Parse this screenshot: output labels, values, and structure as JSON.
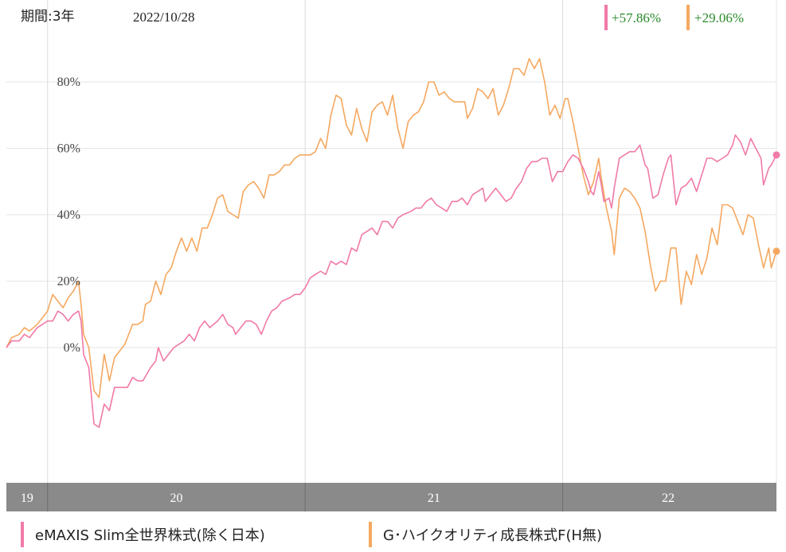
{
  "header": {
    "period_label": "期間:3年",
    "date": "2022/10/28"
  },
  "returns": [
    {
      "value": "+57.86%",
      "color": "#f07aa8"
    },
    {
      "value": "+29.06%",
      "color": "#f5a860"
    }
  ],
  "colors": {
    "series1": "#f07aa8",
    "series2": "#f5a860",
    "positive_text": "#2a8a2a",
    "grid": "#e6e6e6",
    "year_bar": "#8a8a8a"
  },
  "chart_data": {
    "type": "line",
    "ylim": [
      -45,
      100
    ],
    "yticks": [
      0,
      20,
      40,
      60,
      80
    ],
    "ytick_labels": [
      "0%",
      "20%",
      "40%",
      "60%",
      "80%"
    ],
    "xlim": [
      2019.84,
      2022.83
    ],
    "year_ticks": [
      2020.0,
      2021.0,
      2022.0
    ],
    "year_labels": [
      {
        "label": "19",
        "x": 2019.92
      },
      {
        "label": "20",
        "x": 2020.5
      },
      {
        "label": "21",
        "x": 2021.5
      },
      {
        "label": "22",
        "x": 2022.41
      }
    ],
    "series": [
      {
        "name": "eMAXIS Slim全世界株式(除く日本)",
        "points": [
          [
            2019.84,
            0
          ],
          [
            2019.86,
            2
          ],
          [
            2019.89,
            2
          ],
          [
            2019.91,
            4
          ],
          [
            2019.93,
            3
          ],
          [
            2019.96,
            6
          ],
          [
            2019.98,
            7
          ],
          [
            2020.0,
            8
          ],
          [
            2020.02,
            8
          ],
          [
            2020.04,
            11
          ],
          [
            2020.06,
            10
          ],
          [
            2020.08,
            8
          ],
          [
            2020.1,
            10
          ],
          [
            2020.12,
            11
          ],
          [
            2020.13,
            8
          ],
          [
            2020.14,
            -2
          ],
          [
            2020.16,
            -6
          ],
          [
            2020.18,
            -23
          ],
          [
            2020.2,
            -24
          ],
          [
            2020.22,
            -17
          ],
          [
            2020.24,
            -19
          ],
          [
            2020.26,
            -12
          ],
          [
            2020.28,
            -12
          ],
          [
            2020.31,
            -12
          ],
          [
            2020.33,
            -9
          ],
          [
            2020.35,
            -10
          ],
          [
            2020.37,
            -10
          ],
          [
            2020.4,
            -6
          ],
          [
            2020.42,
            -4
          ],
          [
            2020.43,
            0
          ],
          [
            2020.45,
            -4
          ],
          [
            2020.47,
            -2
          ],
          [
            2020.49,
            0
          ],
          [
            2020.51,
            1
          ],
          [
            2020.53,
            2
          ],
          [
            2020.55,
            4
          ],
          [
            2020.57,
            2
          ],
          [
            2020.59,
            6
          ],
          [
            2020.61,
            8
          ],
          [
            2020.63,
            6
          ],
          [
            2020.66,
            8
          ],
          [
            2020.68,
            10
          ],
          [
            2020.7,
            7
          ],
          [
            2020.72,
            6
          ],
          [
            2020.73,
            4
          ],
          [
            2020.75,
            6
          ],
          [
            2020.77,
            8
          ],
          [
            2020.79,
            8
          ],
          [
            2020.81,
            7
          ],
          [
            2020.83,
            4
          ],
          [
            2020.85,
            8
          ],
          [
            2020.87,
            11
          ],
          [
            2020.89,
            12
          ],
          [
            2020.91,
            14
          ],
          [
            2020.94,
            15
          ],
          [
            2020.96,
            16
          ],
          [
            2020.98,
            16
          ],
          [
            2021.0,
            18
          ],
          [
            2021.02,
            21
          ],
          [
            2021.04,
            22
          ],
          [
            2021.06,
            23
          ],
          [
            2021.08,
            22
          ],
          [
            2021.1,
            26
          ],
          [
            2021.12,
            25
          ],
          [
            2021.14,
            26
          ],
          [
            2021.16,
            25
          ],
          [
            2021.18,
            30
          ],
          [
            2021.2,
            29
          ],
          [
            2021.22,
            34
          ],
          [
            2021.24,
            35
          ],
          [
            2021.26,
            36
          ],
          [
            2021.28,
            34
          ],
          [
            2021.3,
            38
          ],
          [
            2021.32,
            38
          ],
          [
            2021.34,
            36
          ],
          [
            2021.36,
            39
          ],
          [
            2021.38,
            40
          ],
          [
            2021.41,
            41
          ],
          [
            2021.43,
            42
          ],
          [
            2021.45,
            42
          ],
          [
            2021.47,
            44
          ],
          [
            2021.49,
            45
          ],
          [
            2021.51,
            43
          ],
          [
            2021.53,
            42
          ],
          [
            2021.55,
            41
          ],
          [
            2021.57,
            44
          ],
          [
            2021.59,
            44
          ],
          [
            2021.61,
            45
          ],
          [
            2021.63,
            43
          ],
          [
            2021.65,
            46
          ],
          [
            2021.67,
            47
          ],
          [
            2021.69,
            48
          ],
          [
            2021.7,
            44
          ],
          [
            2021.72,
            46
          ],
          [
            2021.74,
            48
          ],
          [
            2021.76,
            46
          ],
          [
            2021.78,
            44
          ],
          [
            2021.8,
            45
          ],
          [
            2021.82,
            48
          ],
          [
            2021.84,
            50
          ],
          [
            2021.86,
            54
          ],
          [
            2021.88,
            56
          ],
          [
            2021.9,
            56
          ],
          [
            2021.92,
            57
          ],
          [
            2021.94,
            57
          ],
          [
            2021.96,
            50
          ],
          [
            2021.98,
            53
          ],
          [
            2022.0,
            53
          ],
          [
            2022.02,
            56
          ],
          [
            2022.04,
            58
          ],
          [
            2022.06,
            57
          ],
          [
            2022.08,
            54
          ],
          [
            2022.1,
            50
          ],
          [
            2022.11,
            47
          ],
          [
            2022.12,
            46
          ],
          [
            2022.14,
            53
          ],
          [
            2022.15,
            49
          ],
          [
            2022.16,
            44
          ],
          [
            2022.18,
            45
          ],
          [
            2022.19,
            42
          ],
          [
            2022.2,
            48
          ],
          [
            2022.22,
            57
          ],
          [
            2022.24,
            58
          ],
          [
            2022.26,
            59
          ],
          [
            2022.28,
            59
          ],
          [
            2022.3,
            61
          ],
          [
            2022.32,
            55
          ],
          [
            2022.33,
            54
          ],
          [
            2022.35,
            45
          ],
          [
            2022.37,
            46
          ],
          [
            2022.39,
            52
          ],
          [
            2022.41,
            57
          ],
          [
            2022.42,
            58
          ],
          [
            2022.44,
            43
          ],
          [
            2022.46,
            48
          ],
          [
            2022.48,
            49
          ],
          [
            2022.5,
            51
          ],
          [
            2022.52,
            47
          ],
          [
            2022.54,
            52
          ],
          [
            2022.56,
            57
          ],
          [
            2022.58,
            57
          ],
          [
            2022.6,
            56
          ],
          [
            2022.62,
            57
          ],
          [
            2022.64,
            58
          ],
          [
            2022.66,
            61
          ],
          [
            2022.67,
            64
          ],
          [
            2022.69,
            62
          ],
          [
            2022.71,
            58
          ],
          [
            2022.73,
            63
          ],
          [
            2022.75,
            60
          ],
          [
            2022.77,
            57
          ],
          [
            2022.78,
            49
          ],
          [
            2022.8,
            54
          ],
          [
            2022.81,
            55
          ],
          [
            2022.83,
            58
          ]
        ]
      },
      {
        "name": "G･ハイクオリティ成長株式F(H無)",
        "points": [
          [
            2019.84,
            0
          ],
          [
            2019.86,
            3
          ],
          [
            2019.89,
            4
          ],
          [
            2019.91,
            6
          ],
          [
            2019.93,
            5
          ],
          [
            2019.96,
            7
          ],
          [
            2019.98,
            9
          ],
          [
            2020.0,
            11
          ],
          [
            2020.02,
            16
          ],
          [
            2020.04,
            14
          ],
          [
            2020.06,
            12
          ],
          [
            2020.08,
            15
          ],
          [
            2020.1,
            17
          ],
          [
            2020.12,
            20
          ],
          [
            2020.13,
            13
          ],
          [
            2020.14,
            4
          ],
          [
            2020.16,
            0
          ],
          [
            2020.18,
            -13
          ],
          [
            2020.2,
            -15
          ],
          [
            2020.22,
            -2
          ],
          [
            2020.24,
            -10
          ],
          [
            2020.26,
            -3
          ],
          [
            2020.28,
            -1
          ],
          [
            2020.3,
            1
          ],
          [
            2020.31,
            3
          ],
          [
            2020.33,
            7
          ],
          [
            2020.35,
            7
          ],
          [
            2020.37,
            8
          ],
          [
            2020.38,
            13
          ],
          [
            2020.4,
            14
          ],
          [
            2020.42,
            20
          ],
          [
            2020.44,
            16
          ],
          [
            2020.46,
            22
          ],
          [
            2020.48,
            24
          ],
          [
            2020.5,
            29
          ],
          [
            2020.52,
            33
          ],
          [
            2020.54,
            29
          ],
          [
            2020.56,
            33
          ],
          [
            2020.58,
            29
          ],
          [
            2020.6,
            36
          ],
          [
            2020.62,
            36
          ],
          [
            2020.64,
            40
          ],
          [
            2020.66,
            45
          ],
          [
            2020.68,
            46
          ],
          [
            2020.7,
            41
          ],
          [
            2020.72,
            40
          ],
          [
            2020.74,
            39
          ],
          [
            2020.76,
            47
          ],
          [
            2020.78,
            49
          ],
          [
            2020.8,
            50
          ],
          [
            2020.82,
            48
          ],
          [
            2020.84,
            45
          ],
          [
            2020.86,
            52
          ],
          [
            2020.88,
            52
          ],
          [
            2020.9,
            53
          ],
          [
            2020.92,
            55
          ],
          [
            2020.94,
            55
          ],
          [
            2020.96,
            57
          ],
          [
            2020.98,
            58
          ],
          [
            2021.0,
            58
          ],
          [
            2021.02,
            58
          ],
          [
            2021.04,
            59
          ],
          [
            2021.06,
            63
          ],
          [
            2021.08,
            60
          ],
          [
            2021.1,
            70
          ],
          [
            2021.12,
            76
          ],
          [
            2021.14,
            75
          ],
          [
            2021.16,
            67
          ],
          [
            2021.18,
            64
          ],
          [
            2021.2,
            72
          ],
          [
            2021.22,
            66
          ],
          [
            2021.24,
            62
          ],
          [
            2021.26,
            71
          ],
          [
            2021.28,
            73
          ],
          [
            2021.3,
            74
          ],
          [
            2021.32,
            70
          ],
          [
            2021.34,
            76
          ],
          [
            2021.36,
            66
          ],
          [
            2021.38,
            60
          ],
          [
            2021.4,
            68
          ],
          [
            2021.42,
            70
          ],
          [
            2021.44,
            71
          ],
          [
            2021.46,
            74
          ],
          [
            2021.48,
            80
          ],
          [
            2021.5,
            80
          ],
          [
            2021.52,
            76
          ],
          [
            2021.54,
            77
          ],
          [
            2021.56,
            75
          ],
          [
            2021.58,
            74
          ],
          [
            2021.6,
            74
          ],
          [
            2021.62,
            74
          ],
          [
            2021.63,
            69
          ],
          [
            2021.65,
            72
          ],
          [
            2021.67,
            78
          ],
          [
            2021.69,
            77
          ],
          [
            2021.71,
            75
          ],
          [
            2021.73,
            78
          ],
          [
            2021.75,
            70
          ],
          [
            2021.77,
            73
          ],
          [
            2021.79,
            78
          ],
          [
            2021.81,
            84
          ],
          [
            2021.83,
            84
          ],
          [
            2021.85,
            82
          ],
          [
            2021.87,
            87
          ],
          [
            2021.89,
            84
          ],
          [
            2021.91,
            87
          ],
          [
            2021.93,
            80
          ],
          [
            2021.95,
            70
          ],
          [
            2021.97,
            73
          ],
          [
            2021.99,
            69
          ],
          [
            2022.01,
            75
          ],
          [
            2022.02,
            75
          ],
          [
            2022.04,
            68
          ],
          [
            2022.06,
            60
          ],
          [
            2022.08,
            52
          ],
          [
            2022.1,
            46
          ],
          [
            2022.12,
            50
          ],
          [
            2022.14,
            57
          ],
          [
            2022.15,
            51
          ],
          [
            2022.17,
            42
          ],
          [
            2022.19,
            35
          ],
          [
            2022.2,
            28
          ],
          [
            2022.22,
            45
          ],
          [
            2022.24,
            48
          ],
          [
            2022.26,
            47
          ],
          [
            2022.28,
            45
          ],
          [
            2022.3,
            42
          ],
          [
            2022.32,
            35
          ],
          [
            2022.34,
            25
          ],
          [
            2022.36,
            17
          ],
          [
            2022.38,
            20
          ],
          [
            2022.4,
            20
          ],
          [
            2022.42,
            30
          ],
          [
            2022.44,
            30
          ],
          [
            2022.46,
            13
          ],
          [
            2022.48,
            23
          ],
          [
            2022.5,
            19
          ],
          [
            2022.52,
            28
          ],
          [
            2022.54,
            22
          ],
          [
            2022.56,
            27
          ],
          [
            2022.58,
            36
          ],
          [
            2022.6,
            31
          ],
          [
            2022.62,
            43
          ],
          [
            2022.64,
            43
          ],
          [
            2022.66,
            42
          ],
          [
            2022.68,
            38
          ],
          [
            2022.7,
            34
          ],
          [
            2022.72,
            40
          ],
          [
            2022.74,
            39
          ],
          [
            2022.76,
            31
          ],
          [
            2022.78,
            24
          ],
          [
            2022.8,
            30
          ],
          [
            2022.81,
            24
          ],
          [
            2022.83,
            29
          ]
        ]
      }
    ]
  }
}
